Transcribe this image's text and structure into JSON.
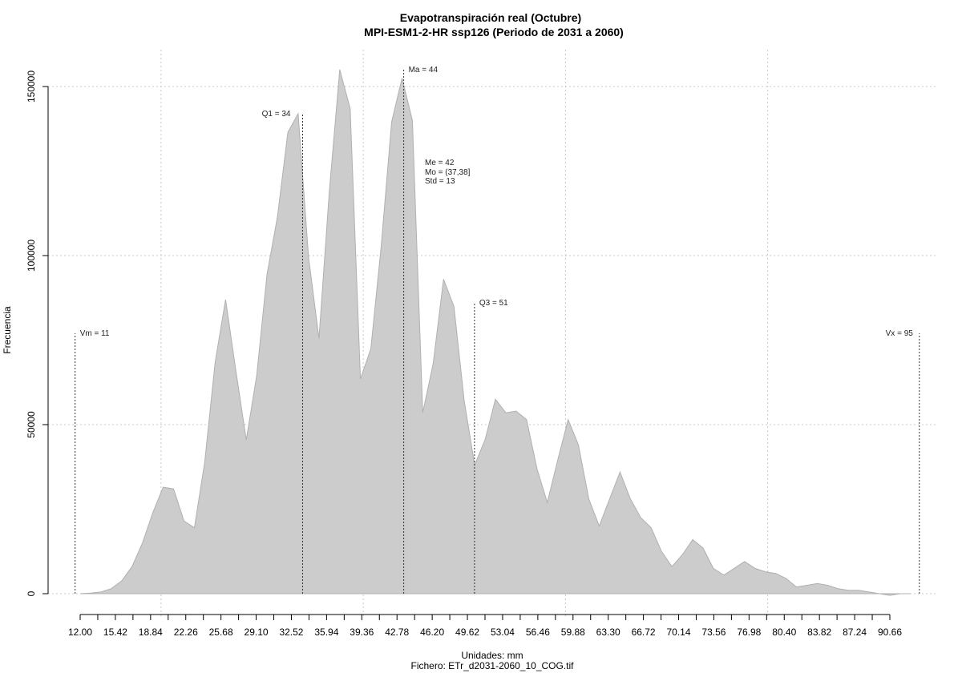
{
  "chart_data": {
    "type": "area",
    "title": "Evapotranspiración real (Octubre)",
    "subtitle": "MPI-ESM1-2-HR ssp126 (Periodo de 2031 a 2060)",
    "xlabel": "Unidades: mm",
    "caption": "Fichero: ETr_d2031-2060_10_COG.tif",
    "ylabel": "Frecuencia",
    "xlim": [
      12.0,
      94.37
    ],
    "ylim": [
      0,
      155000
    ],
    "grid": true,
    "x_tick_labels": [
      "12.00",
      "15.42",
      "18.84",
      "22.26",
      "25.68",
      "29.10",
      "32.52",
      "35.94",
      "39.36",
      "42.78",
      "46.20",
      "49.62",
      "53.04",
      "56.46",
      "59.88",
      "63.30",
      "66.72",
      "70.14",
      "73.56",
      "76.98",
      "80.40",
      "83.82",
      "87.24",
      "90.66"
    ],
    "y_ticks": [
      0,
      50000,
      100000,
      150000
    ],
    "y_tick_labels": [
      "0",
      "50000",
      "100000",
      "150000"
    ],
    "x": [
      12.0,
      13.03,
      14.05,
      15.08,
      16.11,
      17.13,
      18.16,
      19.19,
      20.21,
      21.24,
      22.27,
      23.3,
      24.32,
      25.35,
      26.38,
      27.4,
      28.43,
      29.46,
      30.48,
      31.51,
      32.54,
      33.56,
      34.59,
      35.62,
      36.64,
      37.67,
      38.7,
      39.72,
      40.75,
      41.78,
      42.8,
      43.83,
      44.86,
      45.88,
      46.91,
      47.94,
      48.96,
      49.99,
      51.02,
      52.04,
      53.07,
      54.1,
      55.12,
      56.15,
      57.18,
      58.2,
      59.23,
      60.26,
      61.28,
      62.31,
      63.34,
      64.36,
      65.39,
      66.42,
      67.44,
      68.47,
      69.5,
      70.52,
      71.55,
      72.58,
      73.6,
      74.63,
      75.66,
      76.68,
      77.71,
      78.74,
      79.76,
      80.79,
      81.82,
      82.84,
      83.87,
      84.9,
      85.92,
      86.95,
      87.98,
      89.0,
      90.03,
      91.06,
      92.08,
      93.11,
      94.14
    ],
    "values": [
      0,
      200,
      500,
      1500,
      3800,
      8000,
      15000,
      24000,
      31500,
      31000,
      21500,
      19500,
      39000,
      68500,
      87000,
      66000,
      45500,
      64500,
      94500,
      111500,
      136500,
      142000,
      99500,
      75500,
      119000,
      155000,
      143500,
      63500,
      72500,
      103000,
      139500,
      152500,
      140000,
      53500,
      68000,
      93000,
      85000,
      57000,
      38000,
      45500,
      57500,
      53500,
      54000,
      51500,
      37000,
      27000,
      39500,
      51500,
      44000,
      28000,
      20000,
      28000,
      36000,
      28000,
      22500,
      19500,
      12500,
      8000,
      11500,
      16000,
      13500,
      7500,
      5500,
      7500,
      9500,
      7500,
      6500,
      6000,
      4500,
      2000,
      2500,
      3000,
      2500,
      1500,
      1000,
      1000,
      500,
      0,
      -500,
      0,
      0
    ],
    "series": [
      {
        "values_ref": "values"
      }
    ],
    "fill_color": "#cccccc",
    "line_color": "#b0b0b0",
    "annotations": [
      {
        "label": "Vm = 11",
        "x": 11.5,
        "height": 77000
      },
      {
        "label": "Q1 = 34",
        "x": 34.0,
        "height": 142000
      },
      {
        "label": "Ma = 44",
        "x": 44.0,
        "height": 155000
      },
      {
        "label": "Q3 = 51",
        "x": 51.0,
        "height": 86000
      },
      {
        "label": "Vx = 95",
        "x": 95.0,
        "height": 77000
      }
    ],
    "stats": {
      "me": "Me = 42",
      "mo": "Mo = (37,38]",
      "std": "Std = 13"
    }
  }
}
